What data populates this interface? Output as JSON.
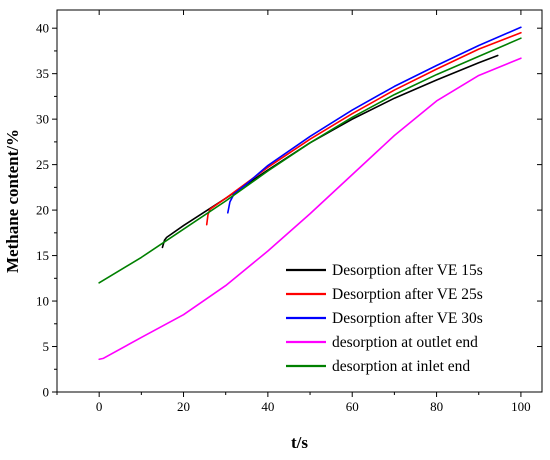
{
  "chart_data": {
    "type": "line",
    "xlabel": "t/s",
    "ylabel": "Methane content/%",
    "xlim": [
      -10,
      105
    ],
    "ylim": [
      0,
      42
    ],
    "xticks": [
      0,
      20,
      40,
      60,
      80,
      100
    ],
    "yticks": [
      0,
      5,
      10,
      15,
      20,
      25,
      30,
      35,
      40
    ],
    "grid": false,
    "legend_position": "bottom-right",
    "series": [
      {
        "name": "Desorption after VE 15s",
        "color": "#000000",
        "x": [
          15,
          15.5,
          16,
          20,
          25,
          30,
          40,
          50,
          60,
          70,
          80,
          90,
          94.5
        ],
        "y": [
          15.9,
          16.7,
          17.0,
          18.3,
          19.8,
          21.3,
          24.4,
          27.4,
          30.0,
          32.3,
          34.3,
          36.2,
          37.0
        ]
      },
      {
        "name": "Desorption after VE 25s",
        "color": "#ff0000",
        "x": [
          25.5,
          25.8,
          26.3,
          30,
          40,
          50,
          60,
          70,
          80,
          90,
          100
        ],
        "y": [
          18.4,
          19.5,
          20.1,
          21.3,
          24.7,
          27.8,
          30.6,
          33.2,
          35.5,
          37.7,
          39.5
        ]
      },
      {
        "name": "Desorption after VE 30s",
        "color": "#0000ff",
        "x": [
          30.5,
          31,
          32,
          35,
          40,
          50,
          60,
          70,
          80,
          90,
          100
        ],
        "y": [
          19.7,
          20.9,
          21.8,
          22.9,
          24.9,
          28.1,
          31.0,
          33.6,
          35.9,
          38.1,
          40.1
        ]
      },
      {
        "name": "desorption at outlet end",
        "color": "#ff00ff",
        "x": [
          0,
          1,
          10,
          20,
          30,
          40,
          50,
          60,
          70,
          80,
          90,
          100
        ],
        "y": [
          3.6,
          3.7,
          6.0,
          8.5,
          11.7,
          15.5,
          19.6,
          23.9,
          28.2,
          32.0,
          34.8,
          36.7
        ]
      },
      {
        "name": "desorption at inlet end",
        "color": "#008000",
        "x": [
          0,
          10,
          20,
          30,
          40,
          50,
          60,
          70,
          80,
          90,
          100
        ],
        "y": [
          12.0,
          14.8,
          17.9,
          21.0,
          24.3,
          27.4,
          30.2,
          32.7,
          34.9,
          36.9,
          38.9
        ]
      }
    ]
  }
}
